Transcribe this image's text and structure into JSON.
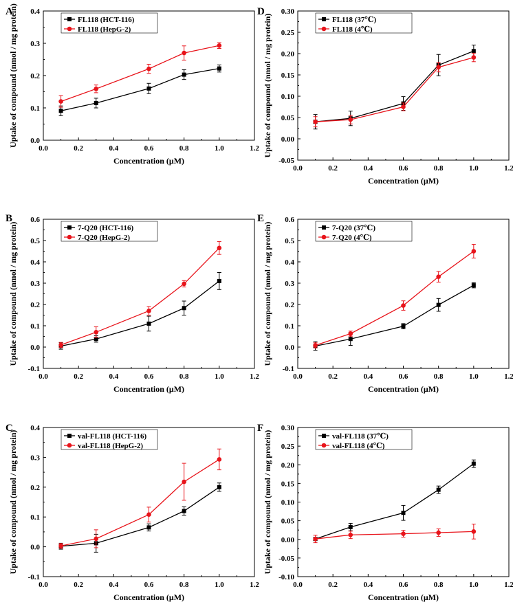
{
  "chart_data": [
    {
      "panel": "A",
      "type": "line",
      "xlabel": "Concentration (μM)",
      "ylabel": "Uptake of compound (nmol / mg protein)",
      "xlim": [
        0.0,
        1.2
      ],
      "ylim": [
        0.0,
        0.4
      ],
      "xticks": [
        0.0,
        0.2,
        0.4,
        0.6,
        0.8,
        1.0,
        1.2
      ],
      "yticks": [
        0.0,
        0.1,
        0.2,
        0.3,
        0.4
      ],
      "ydec": 1,
      "legend_position": "top-left",
      "series": [
        {
          "name": "FL118 (HCT-116)",
          "color": "#000000",
          "marker": "square",
          "x": [
            0.1,
            0.3,
            0.6,
            0.8,
            1.0
          ],
          "y": [
            0.091,
            0.115,
            0.16,
            0.203,
            0.222
          ],
          "err": [
            0.015,
            0.015,
            0.016,
            0.015,
            0.011
          ]
        },
        {
          "name": "FL118 (HepG-2)",
          "color": "#e8141b",
          "marker": "circle",
          "x": [
            0.1,
            0.3,
            0.6,
            0.8,
            1.0
          ],
          "y": [
            0.12,
            0.159,
            0.221,
            0.27,
            0.293
          ],
          "err": [
            0.018,
            0.012,
            0.014,
            0.022,
            0.009
          ]
        }
      ]
    },
    {
      "panel": "B",
      "type": "line",
      "xlabel": "Concentration (μM)",
      "ylabel": "Uptake of compound (nmol / mg protein)",
      "xlim": [
        0.0,
        1.2
      ],
      "ylim": [
        -0.1,
        0.6
      ],
      "xticks": [
        0.0,
        0.2,
        0.4,
        0.6,
        0.8,
        1.0,
        1.2
      ],
      "yticks": [
        -0.1,
        0.0,
        0.1,
        0.2,
        0.3,
        0.4,
        0.5,
        0.6
      ],
      "ydec": 1,
      "legend_position": "top-left",
      "series": [
        {
          "name": "7-Q20 (HCT-116)",
          "color": "#000000",
          "marker": "square",
          "x": [
            0.1,
            0.3,
            0.6,
            0.8,
            1.0
          ],
          "y": [
            0.005,
            0.038,
            0.11,
            0.183,
            0.31
          ],
          "err": [
            0.015,
            0.015,
            0.035,
            0.033,
            0.04
          ]
        },
        {
          "name": "7-Q20 (HepG-2)",
          "color": "#e8141b",
          "marker": "circle",
          "x": [
            0.1,
            0.3,
            0.6,
            0.8,
            1.0
          ],
          "y": [
            0.01,
            0.07,
            0.17,
            0.297,
            0.465
          ],
          "err": [
            0.012,
            0.025,
            0.02,
            0.015,
            0.03
          ]
        }
      ]
    },
    {
      "panel": "C",
      "type": "line",
      "xlabel": "Concentration (μM)",
      "ylabel": "Uptake of compound (nmol / mg protein)",
      "xlim": [
        0.0,
        1.2
      ],
      "ylim": [
        -0.1,
        0.4
      ],
      "xticks": [
        0.0,
        0.2,
        0.4,
        0.6,
        0.8,
        1.0,
        1.2
      ],
      "yticks": [
        -0.1,
        0.0,
        0.1,
        0.2,
        0.3,
        0.4
      ],
      "ydec": 1,
      "legend_position": "top-left",
      "series": [
        {
          "name": "val-FL118 (HCT-116)",
          "color": "#000000",
          "marker": "square",
          "x": [
            0.1,
            0.3,
            0.6,
            0.8,
            1.0
          ],
          "y": [
            0.002,
            0.012,
            0.065,
            0.12,
            0.2
          ],
          "err": [
            0.01,
            0.03,
            0.012,
            0.014,
            0.014
          ]
        },
        {
          "name": "val-FL118 (HepG-2)",
          "color": "#e8141b",
          "marker": "circle",
          "x": [
            0.1,
            0.3,
            0.6,
            0.8,
            1.0
          ],
          "y": [
            0.003,
            0.027,
            0.108,
            0.218,
            0.293
          ],
          "err": [
            0.008,
            0.03,
            0.025,
            0.062,
            0.035
          ]
        }
      ]
    },
    {
      "panel": "D",
      "type": "line",
      "xlabel": "Concentration (μM)",
      "ylabel": "Uptake of compound (nmol / mg protein)",
      "xlim": [
        0.0,
        1.2
      ],
      "ylim": [
        -0.05,
        0.3
      ],
      "xticks": [
        0.0,
        0.2,
        0.4,
        0.6,
        0.8,
        1.0,
        1.2
      ],
      "yticks": [
        -0.05,
        0.0,
        0.05,
        0.1,
        0.15,
        0.2,
        0.25,
        0.3
      ],
      "ydec": 2,
      "legend_position": "top-left",
      "series": [
        {
          "name": "FL118 (37℃)",
          "color": "#000000",
          "marker": "square",
          "x": [
            0.1,
            0.3,
            0.6,
            0.8,
            1.0
          ],
          "y": [
            0.04,
            0.048,
            0.083,
            0.173,
            0.206
          ],
          "err": [
            0.017,
            0.017,
            0.016,
            0.025,
            0.014
          ]
        },
        {
          "name": "FL118 (4℃)",
          "color": "#e8141b",
          "marker": "circle",
          "x": [
            0.1,
            0.3,
            0.6,
            0.8,
            1.0
          ],
          "y": [
            0.04,
            0.045,
            0.075,
            0.168,
            0.191
          ],
          "err": [
            0.012,
            0.01,
            0.009,
            0.011,
            0.01
          ]
        }
      ]
    },
    {
      "panel": "E",
      "type": "line",
      "xlabel": "Concentration (μM)",
      "ylabel": "Uptake of compound (nmol / mg protein)",
      "xlim": [
        0.0,
        1.2
      ],
      "ylim": [
        -0.1,
        0.6
      ],
      "xticks": [
        0.0,
        0.2,
        0.4,
        0.6,
        0.8,
        1.0,
        1.2
      ],
      "yticks": [
        -0.1,
        0.0,
        0.1,
        0.2,
        0.3,
        0.4,
        0.5,
        0.6
      ],
      "ydec": 1,
      "legend_position": "top-left",
      "series": [
        {
          "name": "7-Q20 (37℃)",
          "color": "#000000",
          "marker": "square",
          "x": [
            0.1,
            0.3,
            0.6,
            0.8,
            1.0
          ],
          "y": [
            0.005,
            0.038,
            0.098,
            0.198,
            0.29
          ],
          "err": [
            0.02,
            0.03,
            0.012,
            0.03,
            0.012
          ]
        },
        {
          "name": "7-Q20 (4℃)",
          "color": "#e8141b",
          "marker": "circle",
          "x": [
            0.1,
            0.3,
            0.6,
            0.8,
            1.0
          ],
          "y": [
            0.008,
            0.063,
            0.195,
            0.33,
            0.45
          ],
          "err": [
            0.012,
            0.012,
            0.022,
            0.025,
            0.032
          ]
        }
      ]
    },
    {
      "panel": "F",
      "type": "line",
      "xlabel": "Concentration (μM)",
      "ylabel": "Uptake of compound (nmol / mg protein)",
      "xlim": [
        0.0,
        1.2
      ],
      "ylim": [
        -0.1,
        0.3
      ],
      "xticks": [
        0.0,
        0.2,
        0.4,
        0.6,
        0.8,
        1.0,
        1.2
      ],
      "yticks": [
        -0.1,
        -0.05,
        0.0,
        0.05,
        0.1,
        0.15,
        0.2,
        0.25,
        0.3
      ],
      "ydec": 2,
      "legend_position": "top-left",
      "series": [
        {
          "name": "val-FL118 (37℃)",
          "color": "#000000",
          "marker": "square",
          "x": [
            0.1,
            0.3,
            0.6,
            0.8,
            1.0
          ],
          "y": [
            0.001,
            0.033,
            0.071,
            0.133,
            0.203
          ],
          "err": [
            0.004,
            0.01,
            0.02,
            0.01,
            0.01
          ]
        },
        {
          "name": "val-FL118 (4℃)",
          "color": "#e8141b",
          "marker": "circle",
          "x": [
            0.1,
            0.3,
            0.6,
            0.8,
            1.0
          ],
          "y": [
            0.001,
            0.012,
            0.015,
            0.018,
            0.021
          ],
          "err": [
            0.01,
            0.01,
            0.009,
            0.01,
            0.02
          ]
        }
      ]
    }
  ]
}
